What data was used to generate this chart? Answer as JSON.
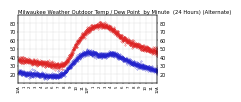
{
  "title": "Milwaukee Weather Outdoor Temp / Dew Point  by Minute  (24 Hours) (Alternate)",
  "title_fontsize": 3.8,
  "bg_color": "#ffffff",
  "plot_bg_color": "#ffffff",
  "grid_color": "#aaaaaa",
  "temp_color": "#dd2222",
  "dew_color": "#2222cc",
  "ylim": [
    10,
    90
  ],
  "xlim": [
    0,
    1440
  ],
  "ylabel_fontsize": 3.5,
  "xlabel_fontsize": 2.8,
  "yticks": [
    20,
    30,
    40,
    50,
    60,
    70,
    80
  ],
  "xtick_labels": [
    "12A",
    "1",
    "2",
    "3",
    "4",
    "5",
    "6",
    "7",
    "8",
    "9",
    "10",
    "11",
    "12P",
    "1",
    "2",
    "3",
    "4",
    "5",
    "6",
    "7",
    "8",
    "9",
    "10",
    "11",
    "12A"
  ],
  "temp_keypoints_x": [
    0,
    60,
    120,
    180,
    240,
    300,
    360,
    420,
    480,
    540,
    600,
    660,
    720,
    780,
    840,
    900,
    960,
    1020,
    1080,
    1140,
    1200,
    1260,
    1320,
    1380,
    1440
  ],
  "temp_keypoints_y": [
    37,
    36,
    35,
    34,
    33,
    32,
    31,
    30,
    32,
    42,
    55,
    65,
    72,
    76,
    78,
    77,
    73,
    68,
    62,
    58,
    55,
    52,
    50,
    48,
    46
  ],
  "dew_keypoints_x": [
    0,
    60,
    120,
    180,
    240,
    300,
    360,
    420,
    480,
    540,
    600,
    660,
    720,
    780,
    840,
    900,
    960,
    1020,
    1080,
    1140,
    1200,
    1260,
    1320,
    1380,
    1440
  ],
  "dew_keypoints_y": [
    22,
    21,
    20,
    20,
    19,
    18,
    18,
    18,
    22,
    30,
    38,
    43,
    46,
    44,
    42,
    42,
    44,
    42,
    38,
    35,
    32,
    30,
    28,
    26,
    24
  ],
  "right_yticks": [
    20,
    30,
    40,
    50,
    60,
    70,
    80
  ]
}
